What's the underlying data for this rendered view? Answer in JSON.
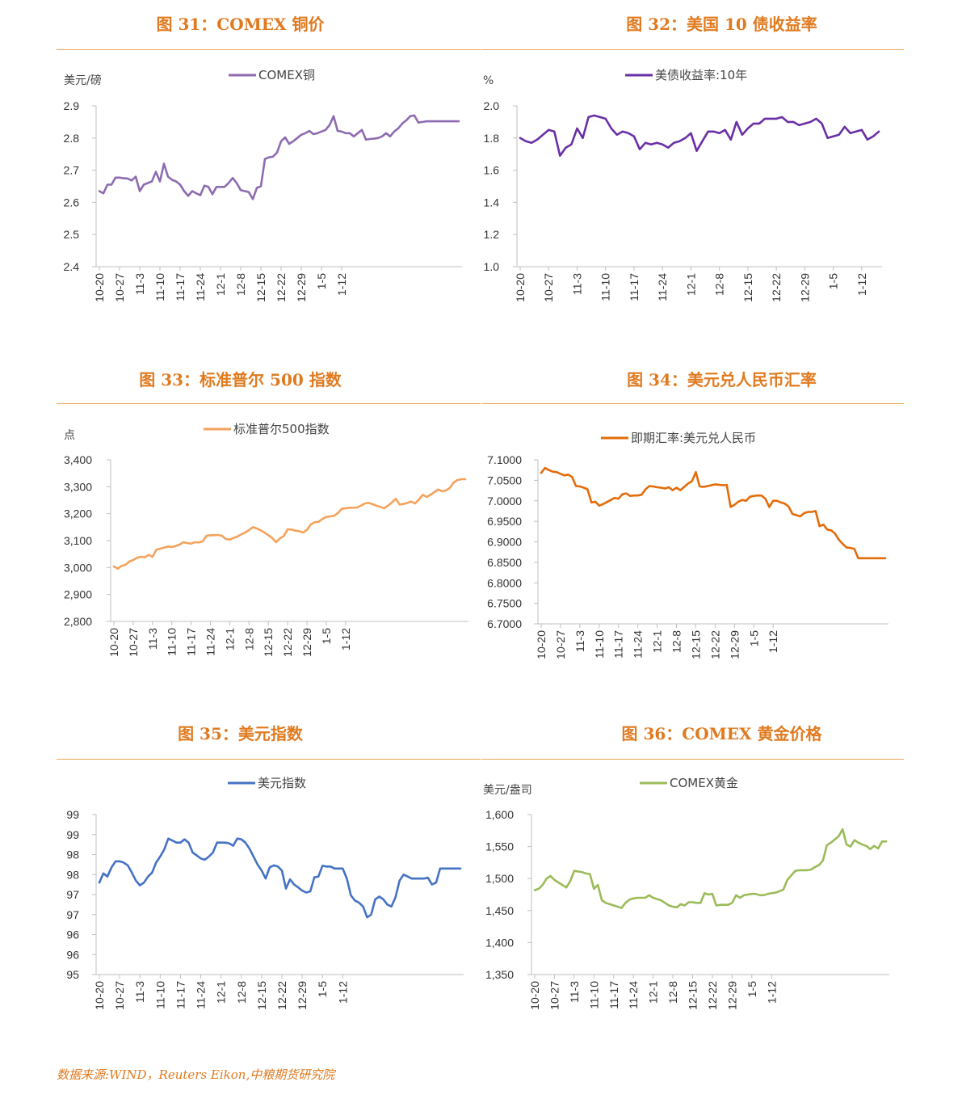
{
  "source_note": "数据来源:WIND，Reuters Eikon,中粮期货研究院",
  "chart_data": [
    {
      "id": "fig31",
      "type": "line",
      "title": "图 31：COMEX 铜价",
      "unit_label": "美元/磅",
      "legend": "COMEX铜",
      "color": "#8e6bb0",
      "ylim": [
        2.4,
        2.9
      ],
      "ytick_step": 0.1,
      "ytick_decimals": 1,
      "xticks": [
        "10-20",
        "10-27",
        "11-3",
        "11-10",
        "11-17",
        "11-24",
        "12-1",
        "12-8",
        "12-15",
        "12-22",
        "12-29",
        "1-5",
        "1-12"
      ],
      "x": [
        0,
        1,
        2,
        3,
        4,
        5,
        6,
        7,
        8,
        9,
        10,
        11,
        12,
        13,
        14,
        15,
        16,
        17,
        18,
        19,
        20,
        21,
        22,
        23,
        24,
        25,
        26,
        27,
        28,
        29,
        30,
        31,
        32,
        33,
        34,
        35,
        36,
        37,
        38,
        39,
        40,
        41,
        42,
        43,
        44,
        45,
        46,
        47,
        48,
        49,
        50,
        51,
        52,
        53,
        54,
        55,
        56,
        57,
        58,
        59,
        60,
        61,
        62,
        63,
        64,
        65,
        66,
        67,
        68,
        69,
        70,
        71,
        72,
        73,
        74,
        75,
        76,
        77,
        78,
        79,
        80,
        81,
        82,
        83,
        84,
        85,
        86,
        87,
        88,
        89
      ],
      "values": [
        2.635,
        2.628,
        2.655,
        2.655,
        2.677,
        2.677,
        2.675,
        2.674,
        2.668,
        2.68,
        2.635,
        2.655,
        2.66,
        2.665,
        2.695,
        2.665,
        2.72,
        2.68,
        2.67,
        2.665,
        2.655,
        2.635,
        2.62,
        2.635,
        2.628,
        2.622,
        2.652,
        2.648,
        2.625,
        2.648,
        2.648,
        2.648,
        2.66,
        2.676,
        2.66,
        2.638,
        2.635,
        2.632,
        2.61,
        2.645,
        2.65,
        2.735,
        2.74,
        2.742,
        2.755,
        2.79,
        2.802,
        2.782,
        2.79,
        2.8,
        2.81,
        2.815,
        2.822,
        2.812,
        2.815,
        2.82,
        2.825,
        2.84,
        2.868,
        2.822,
        2.82,
        2.815,
        2.815,
        2.805,
        2.815,
        2.825,
        2.795,
        2.797,
        2.798,
        2.8,
        2.805,
        2.815,
        2.805,
        2.82,
        2.83,
        2.845,
        2.855,
        2.868,
        2.87,
        2.848,
        2.85,
        2.852,
        2.852,
        2.852,
        2.852,
        2.852,
        2.852,
        2.852,
        2.852,
        2.852
      ]
    },
    {
      "id": "fig32",
      "type": "line",
      "title": "图 32：美国 10 债收益率",
      "unit_label": "%",
      "legend": "美债收益率:10年",
      "color": "#6a2fa5",
      "ylim": [
        1.0,
        2.0
      ],
      "ytick_step": 0.2,
      "ytick_decimals": 1,
      "xticks": [
        "10-20",
        "10-27",
        "11-3",
        "11-10",
        "11-17",
        "11-24",
        "12-1",
        "12-8",
        "12-15",
        "12-22",
        "12-29",
        "1-5",
        "1-12"
      ],
      "x": [
        0,
        1,
        2,
        3,
        4,
        5,
        6,
        7,
        8,
        9,
        10,
        11,
        12,
        13,
        14,
        15,
        16,
        17,
        18,
        19,
        20,
        21,
        22,
        23,
        24,
        25,
        26,
        27,
        28,
        29,
        30,
        31,
        32,
        33,
        34,
        35,
        36,
        37,
        38,
        39,
        40,
        41,
        42,
        43,
        44,
        45,
        46,
        47,
        48,
        49,
        50,
        51,
        52,
        53,
        54,
        55,
        56,
        57,
        58,
        59,
        60,
        61,
        62,
        63
      ],
      "values": [
        1.8,
        1.78,
        1.77,
        1.79,
        1.82,
        1.85,
        1.84,
        1.69,
        1.74,
        1.76,
        1.86,
        1.8,
        1.93,
        1.94,
        1.93,
        1.92,
        1.86,
        1.82,
        1.84,
        1.83,
        1.81,
        1.73,
        1.77,
        1.76,
        1.77,
        1.76,
        1.74,
        1.77,
        1.78,
        1.8,
        1.83,
        1.72,
        1.78,
        1.84,
        1.84,
        1.83,
        1.85,
        1.79,
        1.9,
        1.82,
        1.86,
        1.89,
        1.89,
        1.92,
        1.92,
        1.92,
        1.93,
        1.9,
        1.9,
        1.88,
        1.89,
        1.9,
        1.92,
        1.89,
        1.8,
        1.81,
        1.82,
        1.87,
        1.83,
        1.84,
        1.85,
        1.79,
        1.81,
        1.84
      ]
    },
    {
      "id": "fig33",
      "type": "line",
      "title": "图 33：标准普尔 500 指数",
      "unit_label": "点",
      "legend": "标准普尔500指数",
      "color": "#f4a25c",
      "ylim": [
        2800,
        3400
      ],
      "ytick_step": 100,
      "ytick_decimals": 0,
      "ytick_thousands": true,
      "xticks": [
        "10-20",
        "10-27",
        "11-3",
        "11-10",
        "11-17",
        "11-24",
        "12-1",
        "12-8",
        "12-15",
        "12-22",
        "12-29",
        "1-5",
        "1-12"
      ],
      "x": [
        0,
        1,
        2,
        3,
        4,
        5,
        6,
        7,
        8,
        9,
        10,
        11,
        12,
        13,
        14,
        15,
        16,
        17,
        18,
        19,
        20,
        21,
        22,
        23,
        24,
        25,
        26,
        27,
        28,
        29,
        30,
        31,
        32,
        33,
        34,
        35,
        36,
        37,
        38,
        39,
        40,
        41,
        42,
        43,
        44,
        45,
        46,
        47,
        48,
        49,
        50,
        51,
        52,
        53,
        54,
        55,
        56,
        57,
        58,
        59,
        60,
        61,
        62,
        63,
        64,
        65,
        66,
        67,
        68,
        69,
        70,
        71,
        72,
        73,
        74,
        75,
        76,
        77,
        78,
        79,
        80,
        81,
        82,
        83,
        84,
        85,
        86,
        87,
        88,
        89,
        90,
        91
      ],
      "values": [
        3004,
        2996,
        3006,
        3010,
        3022,
        3028,
        3036,
        3040,
        3038,
        3047,
        3040,
        3066,
        3070,
        3074,
        3078,
        3076,
        3080,
        3085,
        3094,
        3091,
        3089,
        3094,
        3093,
        3097,
        3118,
        3120,
        3120,
        3121,
        3118,
        3106,
        3104,
        3110,
        3115,
        3123,
        3130,
        3139,
        3150,
        3145,
        3138,
        3130,
        3120,
        3110,
        3094,
        3108,
        3117,
        3142,
        3141,
        3137,
        3135,
        3130,
        3140,
        3160,
        3168,
        3170,
        3180,
        3188,
        3190,
        3192,
        3202,
        3218,
        3220,
        3222,
        3222,
        3223,
        3230,
        3238,
        3240,
        3235,
        3230,
        3225,
        3220,
        3230,
        3242,
        3255,
        3234,
        3236,
        3240,
        3245,
        3238,
        3252,
        3270,
        3262,
        3270,
        3280,
        3290,
        3283,
        3286,
        3296,
        3316,
        3325,
        3328,
        3328
      ]
    },
    {
      "id": "fig34",
      "type": "line",
      "title": "图 34：美元兑人民币汇率",
      "unit_label": "",
      "legend": "即期汇率:美元兑人民币",
      "color": "#e36c0a",
      "ylim": [
        6.7,
        7.1
      ],
      "ytick_step": 0.05,
      "ytick_decimals": 4,
      "xticks": [
        "10-20",
        "10-27",
        "11-3",
        "11-10",
        "11-17",
        "11-24",
        "12-1",
        "12-8",
        "12-15",
        "12-22",
        "12-29",
        "1-5",
        "1-12"
      ],
      "x": [
        0,
        1,
        2,
        3,
        4,
        5,
        6,
        7,
        8,
        9,
        10,
        11,
        12,
        13,
        14,
        15,
        16,
        17,
        18,
        19,
        20,
        21,
        22,
        23,
        24,
        25,
        26,
        27,
        28,
        29,
        30,
        31,
        32,
        33,
        34,
        35,
        36,
        37,
        38,
        39,
        40,
        41,
        42,
        43,
        44,
        45,
        46,
        47,
        48,
        49,
        50,
        51,
        52,
        53,
        54,
        55,
        56,
        57,
        58,
        59,
        60,
        61,
        62,
        63,
        64,
        65,
        66,
        67,
        68,
        69,
        70,
        71,
        72,
        73,
        74,
        75,
        76,
        77,
        78,
        79,
        80,
        81,
        82,
        83,
        84,
        85,
        86,
        87,
        88,
        89
      ],
      "values": [
        7.068,
        7.08,
        7.075,
        7.071,
        7.07,
        7.066,
        7.062,
        7.064,
        7.058,
        7.036,
        7.035,
        7.032,
        7.028,
        6.996,
        6.998,
        6.988,
        6.992,
        6.997,
        7.002,
        7.007,
        7.005,
        7.016,
        7.018,
        7.012,
        7.013,
        7.013,
        7.015,
        7.028,
        7.036,
        7.035,
        7.033,
        7.032,
        7.03,
        7.033,
        7.026,
        7.032,
        7.026,
        7.034,
        7.042,
        7.048,
        7.07,
        7.035,
        7.034,
        7.036,
        7.038,
        7.04,
        7.039,
        7.038,
        7.039,
        6.985,
        6.99,
        6.998,
        7.002,
        7.0,
        7.01,
        7.012,
        7.013,
        7.013,
        7.005,
        6.985,
        7.0,
        7.0,
        6.996,
        6.993,
        6.986,
        6.968,
        6.965,
        6.962,
        6.97,
        6.973,
        6.973,
        6.975,
        6.938,
        6.942,
        6.93,
        6.928,
        6.92,
        6.905,
        6.895,
        6.886,
        6.885,
        6.883,
        6.86,
        6.86,
        6.86,
        6.86,
        6.86,
        6.86,
        6.86,
        6.86
      ]
    },
    {
      "id": "fig35",
      "type": "line",
      "title": "图 35：美元指数",
      "unit_label": "",
      "legend": "美元指数",
      "color": "#4472c4",
      "ylim": [
        95,
        99
      ],
      "ytick_step": 0.5,
      "ytick_decimals": 0,
      "xticks": [
        "10-20",
        "10-27",
        "11-3",
        "11-10",
        "11-17",
        "11-24",
        "12-1",
        "12-8",
        "12-15",
        "12-22",
        "12-29",
        "1-5",
        "1-12"
      ],
      "x": [
        0,
        1,
        2,
        3,
        4,
        5,
        6,
        7,
        8,
        9,
        10,
        11,
        12,
        13,
        14,
        15,
        16,
        17,
        18,
        19,
        20,
        21,
        22,
        23,
        24,
        25,
        26,
        27,
        28,
        29,
        30,
        31,
        32,
        33,
        34,
        35,
        36,
        37,
        38,
        39,
        40,
        41,
        42,
        43,
        44,
        45,
        46,
        47,
        48,
        49,
        50,
        51,
        52,
        53,
        54,
        55,
        56,
        57,
        58,
        59,
        60,
        61,
        62,
        63,
        64,
        65,
        66,
        67,
        68,
        69,
        70,
        71,
        72,
        73,
        74,
        75,
        76,
        77,
        78,
        79,
        80,
        81,
        82,
        83,
        84,
        85,
        86,
        87,
        88,
        89
      ],
      "values": [
        97.3,
        97.53,
        97.45,
        97.68,
        97.83,
        97.83,
        97.8,
        97.73,
        97.55,
        97.35,
        97.23,
        97.3,
        97.45,
        97.55,
        97.8,
        97.95,
        98.13,
        98.4,
        98.35,
        98.3,
        98.3,
        98.38,
        98.3,
        98.05,
        97.98,
        97.9,
        97.87,
        97.95,
        98.05,
        98.3,
        98.3,
        98.3,
        98.28,
        98.22,
        98.4,
        98.38,
        98.3,
        98.15,
        97.95,
        97.75,
        97.6,
        97.4,
        97.68,
        97.73,
        97.7,
        97.6,
        97.15,
        97.38,
        97.25,
        97.18,
        97.1,
        97.05,
        97.08,
        97.43,
        97.45,
        97.72,
        97.7,
        97.7,
        97.65,
        97.65,
        97.65,
        97.4,
        96.98,
        96.85,
        96.8,
        96.7,
        96.43,
        96.5,
        96.88,
        96.95,
        96.88,
        96.75,
        96.7,
        96.93,
        97.35,
        97.5,
        97.45,
        97.4,
        97.4,
        97.4,
        97.4,
        97.42,
        97.25,
        97.3,
        97.65,
        97.65,
        97.65,
        97.65,
        97.65,
        97.65
      ]
    },
    {
      "id": "fig36",
      "type": "line",
      "title": "图 36：COMEX 黄金价格",
      "unit_label": "美元/盎司",
      "legend": "COMEX黄金",
      "color": "#9bbb59",
      "ylim": [
        1350,
        1600
      ],
      "ytick_step": 50,
      "ytick_decimals": 0,
      "ytick_thousands": true,
      "xticks": [
        "10-20",
        "10-27",
        "11-3",
        "11-10",
        "11-17",
        "11-24",
        "12-1",
        "12-8",
        "12-15",
        "12-22",
        "12-29",
        "1-5",
        "1-12"
      ],
      "x": [
        0,
        1,
        2,
        3,
        4,
        5,
        6,
        7,
        8,
        9,
        10,
        11,
        12,
        13,
        14,
        15,
        16,
        17,
        18,
        19,
        20,
        21,
        22,
        23,
        24,
        25,
        26,
        27,
        28,
        29,
        30,
        31,
        32,
        33,
        34,
        35,
        36,
        37,
        38,
        39,
        40,
        41,
        42,
        43,
        44,
        45,
        46,
        47,
        48,
        49,
        50,
        51,
        52,
        53,
        54,
        55,
        56,
        57,
        58,
        59,
        60,
        61,
        62,
        63,
        64,
        65,
        66,
        67,
        68,
        69,
        70,
        71,
        72,
        73,
        74,
        75,
        76,
        77,
        78,
        79,
        80,
        81,
        82,
        83,
        84,
        85,
        86,
        87,
        88,
        89
      ],
      "values": [
        1482,
        1484,
        1490,
        1500,
        1504,
        1498,
        1494,
        1490,
        1486,
        1496,
        1512,
        1511,
        1510,
        1508,
        1507,
        1484,
        1490,
        1466,
        1462,
        1460,
        1458,
        1456,
        1454,
        1462,
        1467,
        1469,
        1470,
        1470,
        1470,
        1474,
        1470,
        1468,
        1466,
        1462,
        1458,
        1456,
        1455,
        1460,
        1458,
        1463,
        1463,
        1462,
        1462,
        1477,
        1475,
        1476,
        1458,
        1459,
        1459,
        1459,
        1462,
        1474,
        1470,
        1474,
        1475,
        1476,
        1476,
        1474,
        1474,
        1476,
        1477,
        1478,
        1480,
        1483,
        1498,
        1505,
        1512,
        1513,
        1513,
        1513,
        1514,
        1518,
        1521,
        1528,
        1552,
        1556,
        1561,
        1566,
        1577,
        1553,
        1550,
        1560,
        1556,
        1553,
        1551,
        1546,
        1551,
        1547,
        1558,
        1558
      ]
    }
  ]
}
